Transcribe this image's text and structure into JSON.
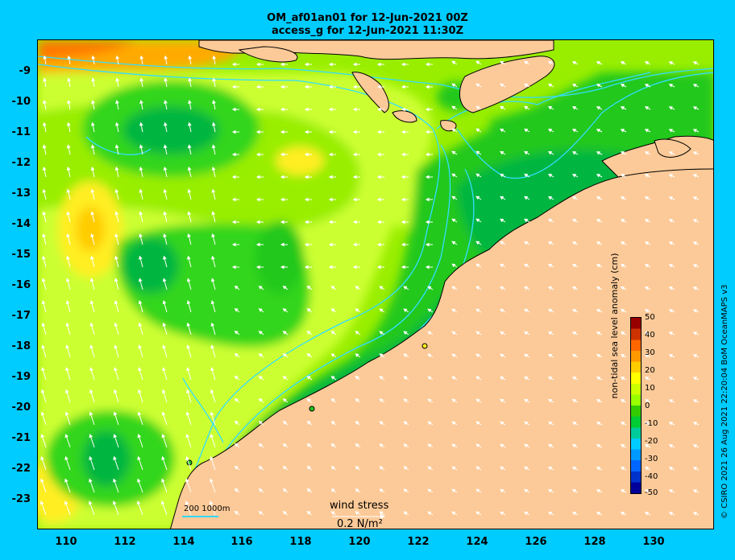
{
  "title_line1": "OM_af01an01 for 12-Jun-2021 00Z",
  "title_line2": "access_g for 12-Jun-2021 11:30Z",
  "lat_labels": [
    "-9",
    "-10",
    "-11",
    "-12",
    "-13",
    "-14",
    "-15",
    "-16",
    "-17",
    "-18",
    "-19",
    "-20",
    "-21",
    "-22",
    "-23"
  ],
  "lon_labels": [
    "110",
    "112",
    "114",
    "116",
    "118",
    "120",
    "122",
    "124",
    "126",
    "128",
    "130"
  ],
  "colorbar": {
    "title": "non-tidal sea level anomaly (cm)",
    "tick_labels": [
      "50",
      "40",
      "30",
      "20",
      "10",
      "0",
      "-10",
      "-20",
      "-30",
      "-40",
      "-50"
    ],
    "colors": [
      "#990000",
      "#cc3300",
      "#ff6600",
      "#ff9900",
      "#ffcc00",
      "#ffff00",
      "#ccff00",
      "#99ff00",
      "#33cc00",
      "#00cc33",
      "#00cc99",
      "#00ccff",
      "#0099ff",
      "#0066ff",
      "#0033cc",
      "#000099"
    ]
  },
  "scale_bar": "200  1000m",
  "wind_stress": {
    "label": "wind stress",
    "value": "0.2 N/m²"
  },
  "credit": "© CSIRO 2021  26 Aug 2021 22:20:04 BoM OceanMAPS v3",
  "palette": {
    "land": "#fcca98",
    "coast": "#000000",
    "contour": "#33ddff",
    "ocean_green": "#22c81e",
    "ocean_dark_green": "#00b640",
    "ocean_lime": "#99ee00",
    "ocean_yellow_green": "#ccff33",
    "ocean_yellow": "#ffee22"
  }
}
